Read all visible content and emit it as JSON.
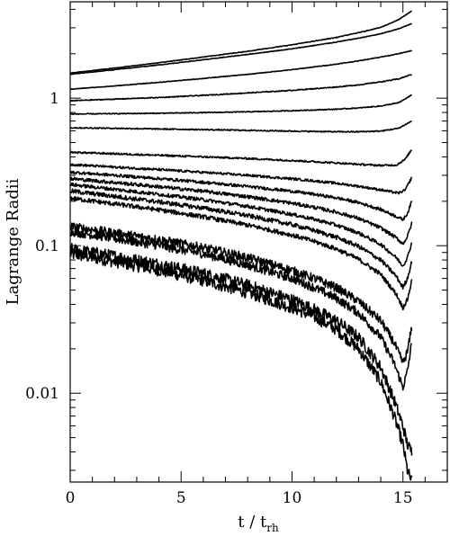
{
  "chart_data": {
    "type": "line",
    "title": "",
    "xlabel": {
      "main": "t / t",
      "sub": "rh"
    },
    "ylabel": "Lagrange Radii",
    "xlim": [
      0,
      17
    ],
    "ylim": [
      0.0025,
      4.5
    ],
    "yscale": "log",
    "grid": false,
    "x_ticks": [
      {
        "value": 0,
        "label": "0"
      },
      {
        "value": 5,
        "label": "5"
      },
      {
        "value": 10,
        "label": "10"
      },
      {
        "value": 15,
        "label": "15"
      }
    ],
    "y_ticks": [
      {
        "value": 0.01,
        "label": "0.01"
      },
      {
        "value": 0.1,
        "label": "0.1"
      },
      {
        "value": 1,
        "label": "1"
      }
    ],
    "series": [
      {
        "noise": 0.04,
        "points": [
          [
            0,
            0.088
          ],
          [
            2,
            0.078
          ],
          [
            4,
            0.068
          ],
          [
            6,
            0.058
          ],
          [
            8,
            0.048
          ],
          [
            10,
            0.038
          ],
          [
            11,
            0.033
          ],
          [
            12,
            0.027
          ],
          [
            13,
            0.02
          ],
          [
            14,
            0.012
          ],
          [
            14.6,
            0.007
          ],
          [
            15,
            0.0045
          ],
          [
            15.2,
            0.003
          ],
          [
            15.4,
            0.0025
          ]
        ]
      },
      {
        "noise": 0.04,
        "points": [
          [
            0,
            0.095
          ],
          [
            2,
            0.085
          ],
          [
            4,
            0.075
          ],
          [
            6,
            0.065
          ],
          [
            8,
            0.054
          ],
          [
            10,
            0.043
          ],
          [
            11,
            0.037
          ],
          [
            12,
            0.031
          ],
          [
            13,
            0.024
          ],
          [
            14,
            0.015
          ],
          [
            14.6,
            0.009
          ],
          [
            15,
            0.006
          ],
          [
            15.2,
            0.0045
          ],
          [
            15.4,
            0.004
          ]
        ]
      },
      {
        "noise": 0.03,
        "points": [
          [
            0,
            0.125
          ],
          [
            2,
            0.112
          ],
          [
            4,
            0.1
          ],
          [
            6,
            0.088
          ],
          [
            8,
            0.074
          ],
          [
            10,
            0.06
          ],
          [
            11,
            0.052
          ],
          [
            12,
            0.044
          ],
          [
            13,
            0.035
          ],
          [
            14,
            0.024
          ],
          [
            14.6,
            0.016
          ],
          [
            15,
            0.011
          ],
          [
            15.2,
            0.014
          ],
          [
            15.4,
            0.022
          ]
        ]
      },
      {
        "noise": 0.03,
        "points": [
          [
            0,
            0.135
          ],
          [
            2,
            0.122
          ],
          [
            4,
            0.11
          ],
          [
            6,
            0.097
          ],
          [
            8,
            0.083
          ],
          [
            10,
            0.068
          ],
          [
            11,
            0.06
          ],
          [
            12,
            0.052
          ],
          [
            13,
            0.042
          ],
          [
            14,
            0.031
          ],
          [
            14.6,
            0.022
          ],
          [
            15,
            0.016
          ],
          [
            15.2,
            0.019
          ],
          [
            15.4,
            0.028
          ]
        ]
      },
      {
        "noise": 0.015,
        "points": [
          [
            0,
            0.21
          ],
          [
            2,
            0.192
          ],
          [
            4,
            0.175
          ],
          [
            6,
            0.157
          ],
          [
            8,
            0.138
          ],
          [
            10,
            0.118
          ],
          [
            11,
            0.107
          ],
          [
            12,
            0.095
          ],
          [
            13,
            0.081
          ],
          [
            14,
            0.064
          ],
          [
            14.7,
            0.047
          ],
          [
            15,
            0.038
          ],
          [
            15.2,
            0.043
          ],
          [
            15.4,
            0.058
          ]
        ]
      },
      {
        "noise": 0.015,
        "points": [
          [
            0,
            0.235
          ],
          [
            2,
            0.216
          ],
          [
            4,
            0.198
          ],
          [
            6,
            0.18
          ],
          [
            8,
            0.16
          ],
          [
            10,
            0.139
          ],
          [
            11,
            0.127
          ],
          [
            12,
            0.114
          ],
          [
            13,
            0.099
          ],
          [
            14,
            0.08
          ],
          [
            14.7,
            0.062
          ],
          [
            15,
            0.052
          ],
          [
            15.2,
            0.06
          ],
          [
            15.4,
            0.078
          ]
        ]
      },
      {
        "noise": 0.012,
        "points": [
          [
            0,
            0.26
          ],
          [
            2,
            0.241
          ],
          [
            4,
            0.223
          ],
          [
            6,
            0.205
          ],
          [
            8,
            0.185
          ],
          [
            10,
            0.163
          ],
          [
            11,
            0.151
          ],
          [
            12,
            0.138
          ],
          [
            13,
            0.122
          ],
          [
            14,
            0.102
          ],
          [
            14.7,
            0.083
          ],
          [
            15,
            0.073
          ],
          [
            15.2,
            0.083
          ],
          [
            15.4,
            0.105
          ]
        ]
      },
      {
        "noise": 0.012,
        "points": [
          [
            0,
            0.285
          ],
          [
            2,
            0.268
          ],
          [
            4,
            0.251
          ],
          [
            6,
            0.234
          ],
          [
            8,
            0.215
          ],
          [
            10,
            0.194
          ],
          [
            11,
            0.182
          ],
          [
            12,
            0.169
          ],
          [
            13,
            0.153
          ],
          [
            14,
            0.132
          ],
          [
            14.7,
            0.113
          ],
          [
            15,
            0.103
          ],
          [
            15.2,
            0.115
          ],
          [
            15.4,
            0.142
          ]
        ]
      },
      {
        "noise": 0.01,
        "points": [
          [
            0,
            0.315
          ],
          [
            2,
            0.3
          ],
          [
            4,
            0.285
          ],
          [
            6,
            0.269
          ],
          [
            8,
            0.252
          ],
          [
            10,
            0.234
          ],
          [
            11,
            0.223
          ],
          [
            12,
            0.211
          ],
          [
            13,
            0.196
          ],
          [
            14,
            0.176
          ],
          [
            14.7,
            0.158
          ],
          [
            15,
            0.15
          ],
          [
            15.2,
            0.165
          ],
          [
            15.4,
            0.2
          ]
        ]
      },
      {
        "noise": 0.008,
        "points": [
          [
            0,
            0.355
          ],
          [
            2,
            0.341
          ],
          [
            4,
            0.328
          ],
          [
            6,
            0.314
          ],
          [
            8,
            0.3
          ],
          [
            10,
            0.284
          ],
          [
            11,
            0.275
          ],
          [
            12,
            0.265
          ],
          [
            13,
            0.253
          ],
          [
            14,
            0.239
          ],
          [
            14.8,
            0.227
          ],
          [
            15.1,
            0.238
          ],
          [
            15.4,
            0.29
          ]
        ]
      },
      {
        "noise": 0.006,
        "points": [
          [
            0,
            0.43
          ],
          [
            2,
            0.42
          ],
          [
            4,
            0.41
          ],
          [
            6,
            0.4
          ],
          [
            8,
            0.39
          ],
          [
            10,
            0.378
          ],
          [
            11,
            0.371
          ],
          [
            12,
            0.364
          ],
          [
            13,
            0.356
          ],
          [
            14,
            0.35
          ],
          [
            14.7,
            0.352
          ],
          [
            15.1,
            0.385
          ],
          [
            15.4,
            0.45
          ]
        ]
      },
      {
        "noise": 0.004,
        "points": [
          [
            0,
            0.63
          ],
          [
            2,
            0.625
          ],
          [
            4,
            0.618
          ],
          [
            6,
            0.612
          ],
          [
            8,
            0.605
          ],
          [
            10,
            0.598
          ],
          [
            12,
            0.592
          ],
          [
            13,
            0.592
          ],
          [
            14,
            0.598
          ],
          [
            14.8,
            0.625
          ],
          [
            15.4,
            0.7
          ]
        ]
      },
      {
        "noise": 0.003,
        "points": [
          [
            0,
            0.78
          ],
          [
            2,
            0.785
          ],
          [
            4,
            0.79
          ],
          [
            6,
            0.798
          ],
          [
            8,
            0.808
          ],
          [
            10,
            0.822
          ],
          [
            12,
            0.842
          ],
          [
            13,
            0.858
          ],
          [
            14,
            0.885
          ],
          [
            14.8,
            0.93
          ],
          [
            15.4,
            1.05
          ]
        ]
      },
      {
        "noise": 0.003,
        "points": [
          [
            0,
            0.96
          ],
          [
            2,
            0.985
          ],
          [
            4,
            1.01
          ],
          [
            6,
            1.045
          ],
          [
            8,
            1.085
          ],
          [
            10,
            1.13
          ],
          [
            12,
            1.19
          ],
          [
            13,
            1.23
          ],
          [
            14,
            1.29
          ],
          [
            14.8,
            1.35
          ],
          [
            15.4,
            1.45
          ]
        ]
      },
      {
        "noise": 0.002,
        "points": [
          [
            0,
            1.15
          ],
          [
            2,
            1.21
          ],
          [
            4,
            1.28
          ],
          [
            6,
            1.36
          ],
          [
            8,
            1.45
          ],
          [
            10,
            1.56
          ],
          [
            12,
            1.7
          ],
          [
            13,
            1.79
          ],
          [
            14,
            1.9
          ],
          [
            14.8,
            2.0
          ],
          [
            15.4,
            2.1
          ]
        ]
      },
      {
        "noise": 0.002,
        "points": [
          [
            0,
            1.45
          ],
          [
            2,
            1.56
          ],
          [
            4,
            1.68
          ],
          [
            6,
            1.82
          ],
          [
            8,
            1.98
          ],
          [
            10,
            2.16
          ],
          [
            12,
            2.4
          ],
          [
            13,
            2.55
          ],
          [
            14,
            2.73
          ],
          [
            14.8,
            2.95
          ],
          [
            15.4,
            3.2
          ]
        ]
      },
      {
        "noise": 0.002,
        "points": [
          [
            0,
            1.48
          ],
          [
            2,
            1.6
          ],
          [
            4,
            1.74
          ],
          [
            6,
            1.9
          ],
          [
            8,
            2.08
          ],
          [
            10,
            2.3
          ],
          [
            12,
            2.58
          ],
          [
            13,
            2.78
          ],
          [
            14,
            3.02
          ],
          [
            14.8,
            3.4
          ],
          [
            15.4,
            3.9
          ]
        ]
      }
    ]
  }
}
